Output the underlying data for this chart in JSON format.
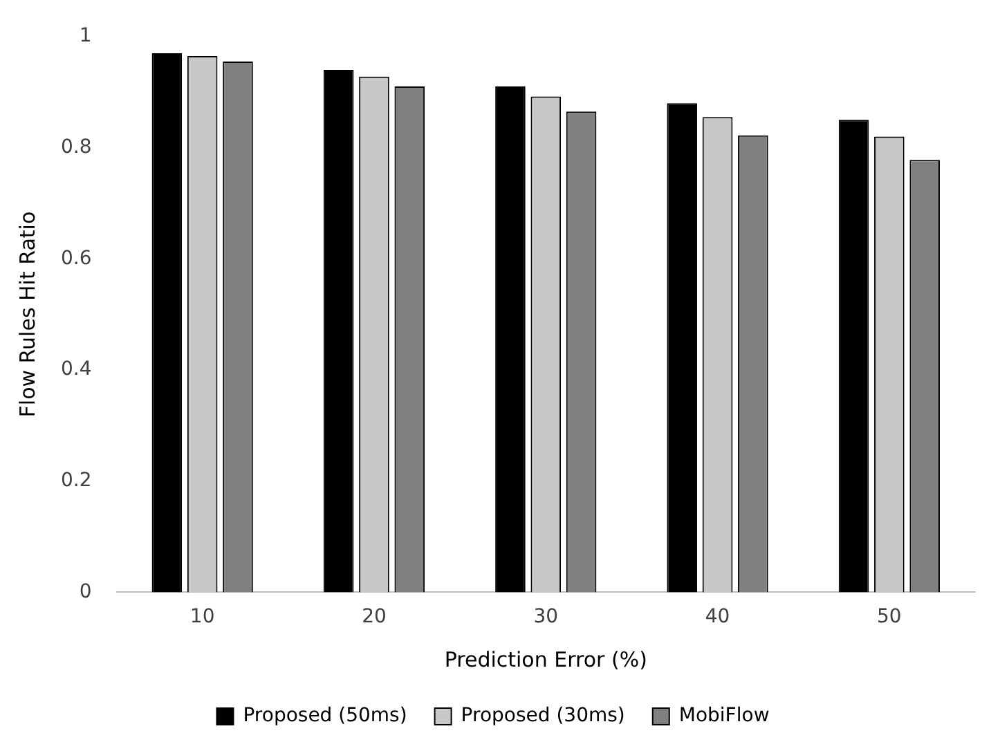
{
  "chart_data": {
    "type": "bar",
    "xlabel": "Prediction Error (%)",
    "ylabel": "Flow Rules Hit Ratio",
    "categories": [
      "10",
      "20",
      "30",
      "40",
      "50"
    ],
    "series": [
      {
        "name": "Proposed (50ms)",
        "color": "#000000",
        "values": [
          0.97,
          0.94,
          0.91,
          0.88,
          0.85
        ]
      },
      {
        "name": "Proposed (30ms)",
        "color": "#c8c8c8",
        "values": [
          0.965,
          0.928,
          0.892,
          0.855,
          0.82
        ]
      },
      {
        "name": "MobiFlow",
        "color": "#808080",
        "values": [
          0.955,
          0.91,
          0.865,
          0.822,
          0.778
        ]
      }
    ],
    "ylim": [
      0,
      1
    ],
    "yticks": [
      0,
      0.2,
      0.4,
      0.6,
      0.8,
      1
    ],
    "grid": false,
    "legend": "bottom"
  }
}
